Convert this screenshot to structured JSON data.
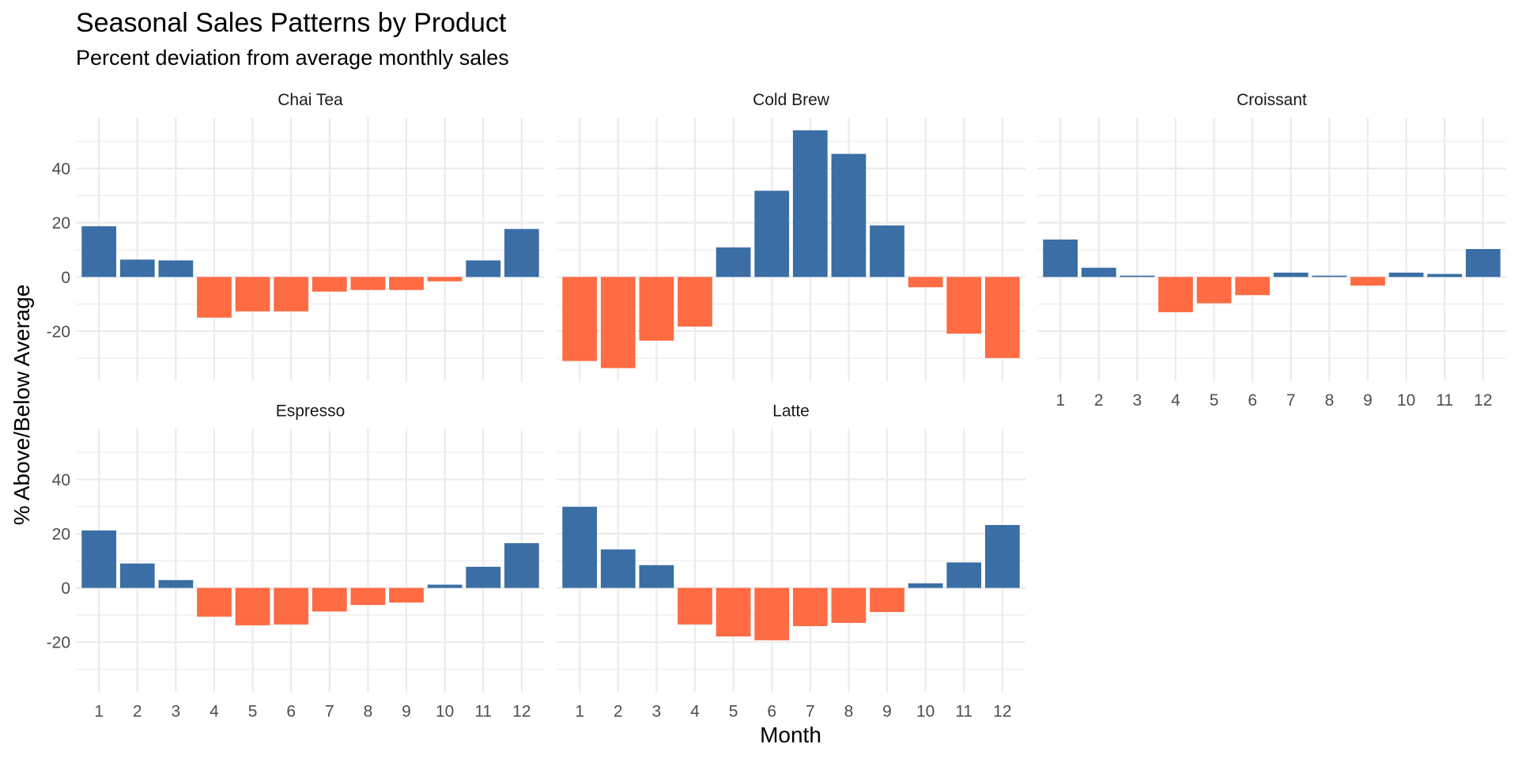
{
  "chart_data": {
    "type": "bar",
    "title": "Seasonal Sales Patterns by Product",
    "subtitle": "Percent deviation from average monthly sales",
    "xlabel": "Month",
    "ylabel": "% Above/Below Average",
    "categories": [
      "1",
      "2",
      "3",
      "4",
      "5",
      "6",
      "7",
      "8",
      "9",
      "10",
      "11",
      "12"
    ],
    "ylim": [
      -38.4,
      58.7
    ],
    "yticks": [
      -20,
      0,
      20,
      40
    ],
    "ytick_labels": [
      "-20",
      "0",
      "20",
      "40"
    ],
    "grid": true,
    "legend": "none",
    "facet_layout": "3 columns, 2 rows, shared axes",
    "colors": {
      "positive": "#3a6ea5",
      "negative": "#ff6b42",
      "grid": "#ebebeb"
    },
    "panels": [
      {
        "name": "Chai Tea",
        "values": [
          18.7,
          6.4,
          6.1,
          -15.0,
          -12.7,
          -12.7,
          -5.4,
          -4.8,
          -4.8,
          -1.6,
          6.1,
          17.7
        ]
      },
      {
        "name": "Cold Brew",
        "values": [
          -31.0,
          -33.6,
          -23.5,
          -18.3,
          10.9,
          31.8,
          54.1,
          45.4,
          19.0,
          -3.8,
          -20.9,
          -29.9
        ]
      },
      {
        "name": "Croissant",
        "values": [
          13.8,
          3.4,
          0.5,
          -13.0,
          -9.7,
          -6.7,
          1.6,
          0.5,
          -3.2,
          1.6,
          1.1,
          10.3
        ]
      },
      {
        "name": "Espresso",
        "values": [
          21.2,
          9.0,
          2.9,
          -10.6,
          -13.8,
          -13.5,
          -8.7,
          -6.3,
          -5.4,
          1.2,
          7.8,
          16.5
        ]
      },
      {
        "name": "Latte",
        "values": [
          29.9,
          14.2,
          8.4,
          -13.5,
          -17.9,
          -19.3,
          -14.1,
          -12.9,
          -8.9,
          1.7,
          9.4,
          23.2
        ]
      }
    ]
  }
}
